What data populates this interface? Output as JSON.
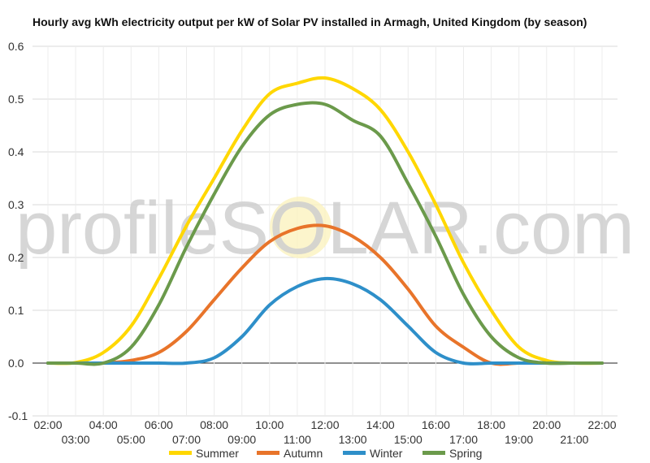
{
  "chart_data": {
    "type": "line",
    "title": "Hourly avg kWh electricity output per kW of Solar PV installed in Armagh, United Kingdom (by season)",
    "xlabel": "",
    "ylabel": "",
    "ylim": [
      -0.1,
      0.6
    ],
    "yticks": [
      "-0.1",
      "0.0",
      "0.1",
      "0.2",
      "0.3",
      "0.4",
      "0.5",
      "0.6"
    ],
    "x": [
      "02:00",
      "03:00",
      "04:00",
      "05:00",
      "06:00",
      "07:00",
      "08:00",
      "09:00",
      "10:00",
      "11:00",
      "12:00",
      "13:00",
      "14:00",
      "15:00",
      "16:00",
      "17:00",
      "18:00",
      "19:00",
      "20:00",
      "21:00",
      "22:00"
    ],
    "grid": true,
    "legend_position": "bottom",
    "series": [
      {
        "name": "Summer",
        "color": "#FFD700",
        "values": [
          0,
          0.001,
          0.02,
          0.07,
          0.16,
          0.26,
          0.35,
          0.44,
          0.51,
          0.53,
          0.54,
          0.52,
          0.48,
          0.4,
          0.3,
          0.19,
          0.1,
          0.03,
          0.005,
          0,
          0
        ]
      },
      {
        "name": "Autumn",
        "color": "#E8742A",
        "values": [
          0,
          0,
          0,
          0.005,
          0.02,
          0.06,
          0.12,
          0.18,
          0.23,
          0.255,
          0.26,
          0.24,
          0.2,
          0.14,
          0.07,
          0.03,
          0.0,
          0,
          0,
          0,
          0
        ]
      },
      {
        "name": "Winter",
        "color": "#2E8FC9",
        "values": [
          0,
          0,
          0,
          0,
          0,
          0,
          0.01,
          0.05,
          0.11,
          0.145,
          0.16,
          0.15,
          0.12,
          0.07,
          0.02,
          0.0,
          0,
          0,
          0,
          0,
          0
        ]
      },
      {
        "name": "Spring",
        "color": "#6B9A4B",
        "values": [
          0,
          0,
          0.0,
          0.03,
          0.11,
          0.22,
          0.32,
          0.41,
          0.47,
          0.49,
          0.49,
          0.46,
          0.43,
          0.34,
          0.24,
          0.13,
          0.05,
          0.01,
          0,
          0,
          0
        ]
      }
    ]
  },
  "watermark": {
    "text": "profileSOLAR.com"
  }
}
